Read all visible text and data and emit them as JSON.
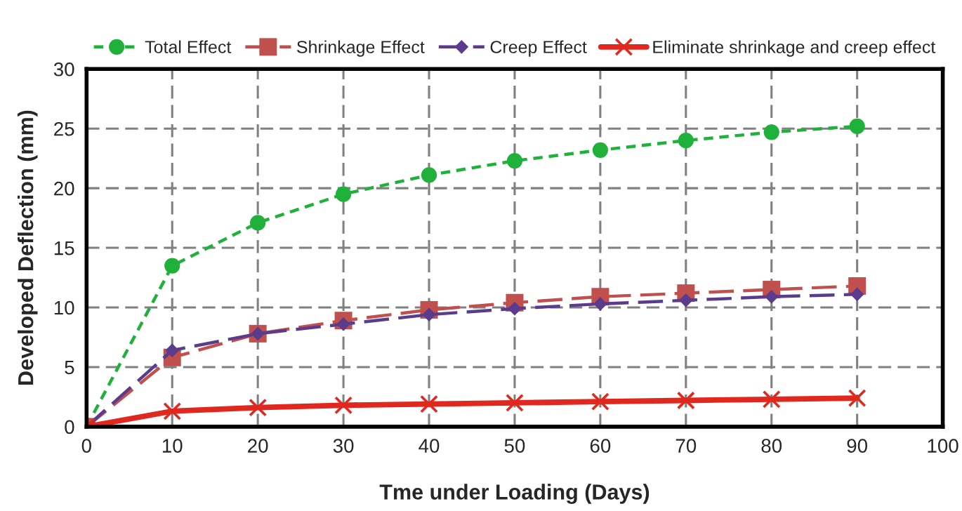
{
  "chart_data": {
    "type": "line",
    "xlabel": "Tme under Loading (Days)",
    "ylabel": "Developed Deflection (mm)",
    "x": [
      0,
      10,
      20,
      30,
      40,
      50,
      60,
      70,
      80,
      90
    ],
    "series": [
      {
        "name": "Total Effect",
        "color": "#1fb13a",
        "marker": "circle",
        "line_style": "dotted",
        "values": [
          0,
          13.5,
          17.1,
          19.5,
          21.1,
          22.3,
          23.2,
          24.0,
          24.7,
          25.2
        ]
      },
      {
        "name": "Shrinkage Effect",
        "color": "#c0504d",
        "marker": "square",
        "line_style": "dashed",
        "values": [
          0,
          5.8,
          7.8,
          8.9,
          9.8,
          10.4,
          10.9,
          11.2,
          11.5,
          11.8
        ]
      },
      {
        "name": "Creep Effect",
        "color": "#5b3b8c",
        "marker": "diamond",
        "line_style": "dashed",
        "values": [
          0,
          6.4,
          7.8,
          8.6,
          9.4,
          9.9,
          10.3,
          10.6,
          10.9,
          11.1
        ]
      },
      {
        "name": "Eliminate shrinkage and creep effect",
        "color": "#e0281e",
        "marker": "cross",
        "line_style": "solid",
        "values": [
          0,
          1.3,
          1.6,
          1.8,
          1.9,
          2.0,
          2.1,
          2.2,
          2.3,
          2.4
        ]
      }
    ],
    "xlim": [
      0,
      100
    ],
    "xticks": [
      0,
      10,
      20,
      30,
      40,
      50,
      60,
      70,
      80,
      90,
      100
    ],
    "ylim": [
      0,
      30
    ],
    "yticks": [
      0,
      5,
      10,
      15,
      20,
      25,
      30
    ],
    "grid": true,
    "legend": "top"
  }
}
